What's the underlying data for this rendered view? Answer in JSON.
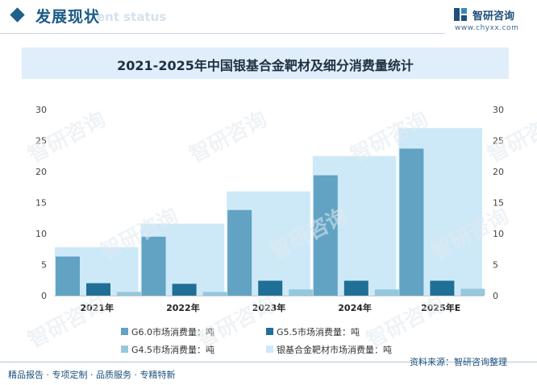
{
  "header": {
    "section_title": "发展现状",
    "section_ghost": "ent status",
    "brand_name": "智研咨询",
    "brand_url": "www.chyxx.com"
  },
  "chart_data": {
    "type": "bar",
    "title": "2021-2025年中国银基合金靶材及细分消费量统计",
    "categories": [
      "2021年",
      "2022年",
      "2023年",
      "2024年",
      "2025年E"
    ],
    "ylim": [
      0,
      30
    ],
    "yticks": [
      0,
      5,
      10,
      15,
      20,
      25,
      30
    ],
    "series": [
      {
        "name": "G6.0市场消费量：吨",
        "values": [
          6.3,
          9.5,
          13.8,
          19.4,
          23.7
        ],
        "color": "#62a3c4"
      },
      {
        "name": "G5.5市场消费量：吨",
        "values": [
          2.0,
          1.9,
          2.4,
          2.4,
          2.4
        ],
        "color": "#1f6f97"
      },
      {
        "name": "G4.5市场消费量：吨",
        "values": [
          0.6,
          0.6,
          1.0,
          1.0,
          1.1
        ],
        "color": "#94c8de"
      },
      {
        "name": "银基合金靶材市场消费量：吨",
        "values": [
          7.8,
          11.6,
          16.8,
          22.5,
          27.0
        ],
        "color": "#cde9f8"
      }
    ],
    "legend_position": "bottom",
    "grid": false
  },
  "footer": {
    "left": "精品报告 · 专项定制 · 品质服务 · 专精特新",
    "right": "资料来源：智研咨询整理"
  },
  "watermark_text": "智研咨询"
}
